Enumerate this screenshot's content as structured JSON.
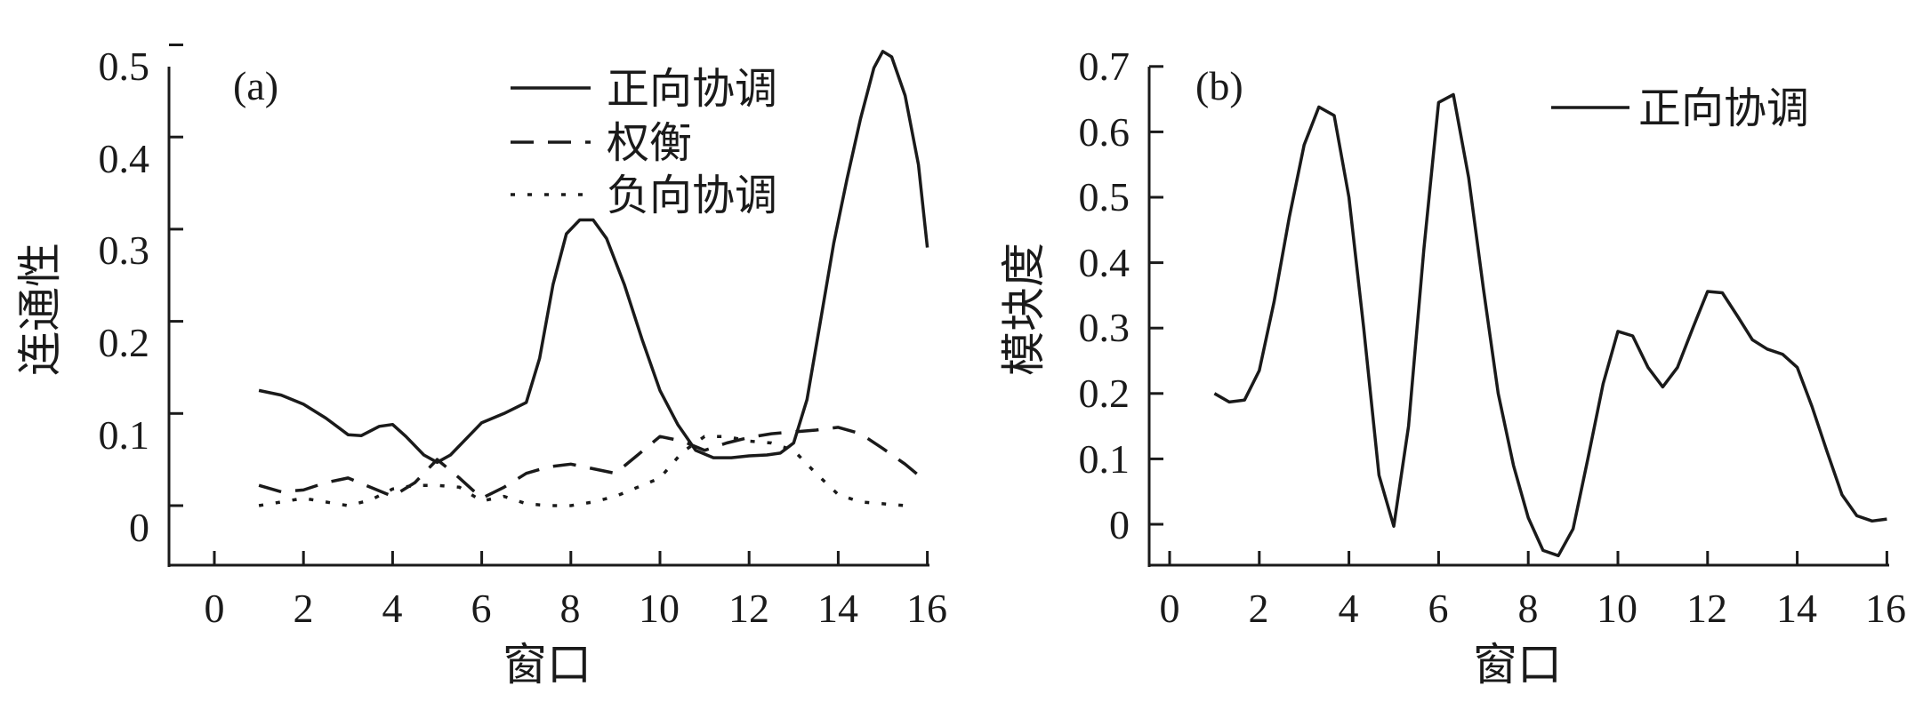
{
  "chart_data": [
    {
      "type": "line",
      "panel_label": "(a)",
      "xlabel": "窗口",
      "ylabel": "连通性",
      "xlim": [
        -1,
        16
      ],
      "ylim": [
        -0.04,
        0.5
      ],
      "xticks": [
        0,
        2,
        4,
        6,
        8,
        10,
        12,
        14,
        16
      ],
      "yticks": [
        0,
        0.1,
        0.2,
        0.3,
        0.4,
        0.5
      ],
      "ytick_labels": [
        "0",
        "0.1",
        "0.2",
        "0.3",
        "0.4",
        "0.5"
      ],
      "legend_position": "top-right",
      "grid": false,
      "series": [
        {
          "name": "正向协调",
          "dash": "solid",
          "x": [
            1,
            1.5,
            2,
            2.5,
            3,
            3.3,
            3.7,
            4,
            4.3,
            4.7,
            5,
            5.3,
            5.7,
            6,
            6.5,
            7,
            7.3,
            7.6,
            7.9,
            8.2,
            8.5,
            8.8,
            9.2,
            9.6,
            10,
            10.4,
            10.8,
            11.2,
            11.6,
            12,
            12.4,
            12.7,
            13,
            13.3,
            13.6,
            13.9,
            14.2,
            14.5,
            14.8,
            15,
            15.2,
            15.5,
            15.8,
            16
          ],
          "y": [
            0.125,
            0.12,
            0.11,
            0.095,
            0.077,
            0.076,
            0.086,
            0.088,
            0.075,
            0.055,
            0.047,
            0.055,
            0.075,
            0.09,
            0.1,
            0.112,
            0.16,
            0.24,
            0.295,
            0.31,
            0.31,
            0.29,
            0.24,
            0.18,
            0.125,
            0.088,
            0.06,
            0.052,
            0.052,
            0.054,
            0.055,
            0.057,
            0.068,
            0.115,
            0.2,
            0.285,
            0.355,
            0.42,
            0.475,
            0.493,
            0.487,
            0.445,
            0.37,
            0.28
          ]
        },
        {
          "name": "权衡",
          "dash": "dashed",
          "x": [
            1,
            1.5,
            2,
            2.5,
            3,
            3.5,
            4,
            4.5,
            5,
            5.5,
            6,
            6.5,
            7,
            7.5,
            8,
            8.5,
            9,
            9.5,
            10,
            10.5,
            11,
            11.5,
            12,
            12.5,
            13,
            13.5,
            14,
            14.5,
            15,
            15.5,
            16
          ],
          "y": [
            0.022,
            0.015,
            0.017,
            0.025,
            0.03,
            0.02,
            0.01,
            0.025,
            0.05,
            0.03,
            0.008,
            0.02,
            0.035,
            0.042,
            0.045,
            0.04,
            0.035,
            0.055,
            0.075,
            0.07,
            0.06,
            0.068,
            0.074,
            0.078,
            0.08,
            0.082,
            0.085,
            0.078,
            0.062,
            0.045,
            0.025
          ]
        },
        {
          "name": "负向协调",
          "dash": "dotted",
          "x": [
            1,
            1.5,
            2,
            2.5,
            3,
            3.5,
            4,
            4.5,
            5,
            5.5,
            6,
            6.5,
            7,
            7.5,
            8,
            8.5,
            9,
            9.5,
            10,
            10.5,
            11,
            11.5,
            12,
            12.5,
            13,
            13.5,
            14,
            14.5,
            15,
            15.5
          ],
          "y": [
            0.0,
            0.004,
            0.008,
            0.004,
            0.0,
            0.006,
            0.018,
            0.022,
            0.022,
            0.02,
            0.005,
            0.01,
            0.002,
            0.0,
            0.0,
            0.004,
            0.01,
            0.02,
            0.03,
            0.058,
            0.075,
            0.075,
            0.07,
            0.068,
            0.06,
            0.035,
            0.012,
            0.004,
            0.002,
            0.0
          ]
        }
      ]
    },
    {
      "type": "line",
      "panel_label": "(b)",
      "xlabel": "窗口",
      "ylabel": "模块度",
      "xlim": [
        -0.5,
        16
      ],
      "ylim": [
        -0.06,
        0.7
      ],
      "xticks": [
        0,
        2,
        4,
        6,
        8,
        10,
        12,
        14,
        16
      ],
      "yticks": [
        0,
        0.1,
        0.2,
        0.3,
        0.4,
        0.5,
        0.6,
        0.7
      ],
      "ytick_labels": [
        "0",
        "0.1",
        "0.2",
        "0.3",
        "0.4",
        "0.5",
        "0.6",
        "0.7"
      ],
      "legend_position": "top-right",
      "grid": false,
      "series": [
        {
          "name": "正向协调",
          "dash": "solid",
          "x": [
            1,
            1.33,
            1.67,
            2,
            2.33,
            2.67,
            3,
            3.33,
            3.67,
            4,
            4.33,
            4.67,
            5,
            5.33,
            5.67,
            6,
            6.33,
            6.67,
            7,
            7.33,
            7.67,
            8,
            8.33,
            8.67,
            9,
            9.33,
            9.67,
            10,
            10.33,
            10.67,
            11,
            11.33,
            11.67,
            12,
            12.33,
            12.67,
            13,
            13.33,
            13.67,
            14,
            14.33,
            14.67,
            15,
            15.33,
            15.67,
            16
          ],
          "y": [
            0.2,
            0.187,
            0.19,
            0.235,
            0.34,
            0.47,
            0.58,
            0.638,
            0.625,
            0.5,
            0.3,
            0.075,
            -0.003,
            0.15,
            0.42,
            0.645,
            0.657,
            0.53,
            0.36,
            0.2,
            0.09,
            0.01,
            -0.04,
            -0.048,
            -0.007,
            0.1,
            0.215,
            0.295,
            0.288,
            0.24,
            0.21,
            0.24,
            0.3,
            0.356,
            0.354,
            0.318,
            0.282,
            0.268,
            0.26,
            0.24,
            0.18,
            0.11,
            0.045,
            0.013,
            0.005,
            0.008
          ]
        }
      ]
    }
  ]
}
